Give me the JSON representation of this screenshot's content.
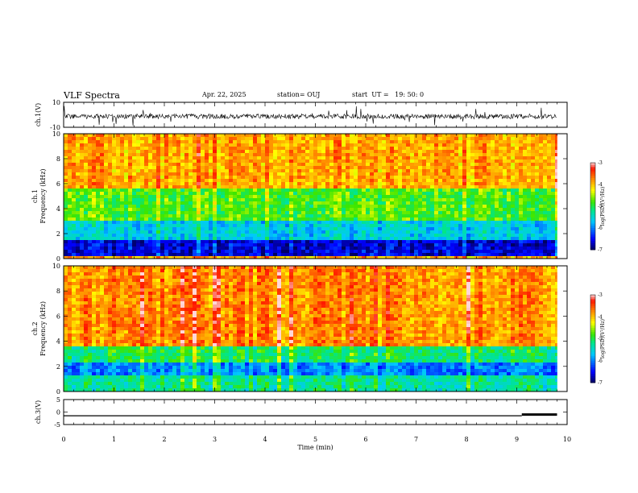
{
  "header": {
    "title": "VLF Spectra",
    "date": "Apr. 22, 2025",
    "station": "station= OUJ",
    "start": "start  UT =   19: 50: 0"
  },
  "chart_data": [
    {
      "type": "line",
      "panel": "ch1-waveform",
      "ylabel": "ch.1(V)",
      "ylim": [
        -10,
        10
      ],
      "yticks": [
        "10",
        "-10"
      ],
      "xlim": [
        0,
        10
      ],
      "note": "noisy waveform centered near 0 V with spikes, spanning 0 to ~9.8 min",
      "color": "#000000"
    },
    {
      "type": "heatmap",
      "panel": "ch1-spectrogram",
      "ylabel_top": "ch.1",
      "ylabel": "Frequency  (kHz)",
      "ylim": [
        0,
        10
      ],
      "yticks": [
        "0",
        "2",
        "4",
        "6",
        "8",
        "10"
      ],
      "xlim": [
        0,
        10
      ],
      "data_end_min": 9.8,
      "colorbar": {
        "label": "log(PSD)(V²/Hz)",
        "range": [
          -7,
          -3
        ],
        "ticks": [
          "-3",
          "-4",
          "-5",
          "-6",
          "-7"
        ]
      },
      "bands": [
        {
          "fmin": 0.2,
          "fmax": 1.6,
          "level": -6.6
        },
        {
          "fmin": 1.6,
          "fmax": 3.0,
          "level": -5.6
        },
        {
          "fmin": 3.0,
          "fmax": 5.5,
          "level": -4.8
        },
        {
          "fmin": 5.5,
          "fmax": 10.0,
          "level": -3.9
        }
      ]
    },
    {
      "type": "heatmap",
      "panel": "ch2-spectrogram",
      "ylabel_top": "ch.2",
      "ylabel": "Frequency  (kHz)",
      "ylim": [
        0,
        10
      ],
      "yticks": [
        "0",
        "2",
        "4",
        "6",
        "8",
        "10"
      ],
      "xlim": [
        0,
        10
      ],
      "data_end_min": 9.8,
      "colorbar": {
        "label": "log(PSD)(V²/Hz)",
        "range": [
          -7,
          -3
        ],
        "ticks": [
          "-3",
          "-4",
          "-5",
          "-6",
          "-7"
        ]
      },
      "bands": [
        {
          "fmin": 0.0,
          "fmax": 1.2,
          "level": -5.3
        },
        {
          "fmin": 1.2,
          "fmax": 2.3,
          "level": -6.0
        },
        {
          "fmin": 2.3,
          "fmax": 3.6,
          "level": -5.1
        },
        {
          "fmin": 3.6,
          "fmax": 10.0,
          "level": -3.8
        }
      ]
    },
    {
      "type": "line",
      "panel": "ch3-signal",
      "ylabel": "ch.3(V)",
      "ylim": [
        -5,
        5
      ],
      "yticks": [
        "5",
        "0",
        "-5"
      ],
      "xlim": [
        0,
        10
      ],
      "xlabel": "Time  (min)",
      "xticks": [
        "0",
        "1",
        "2",
        "3",
        "4",
        "5",
        "6",
        "7",
        "8",
        "9",
        "10"
      ],
      "segments": [
        {
          "x": [
            0,
            9.1
          ],
          "y": [
            -1.5,
            -1.5
          ]
        },
        {
          "x": [
            9.1,
            9.8
          ],
          "y": [
            -1.0,
            -1.0
          ]
        }
      ],
      "color": "#000000"
    }
  ]
}
